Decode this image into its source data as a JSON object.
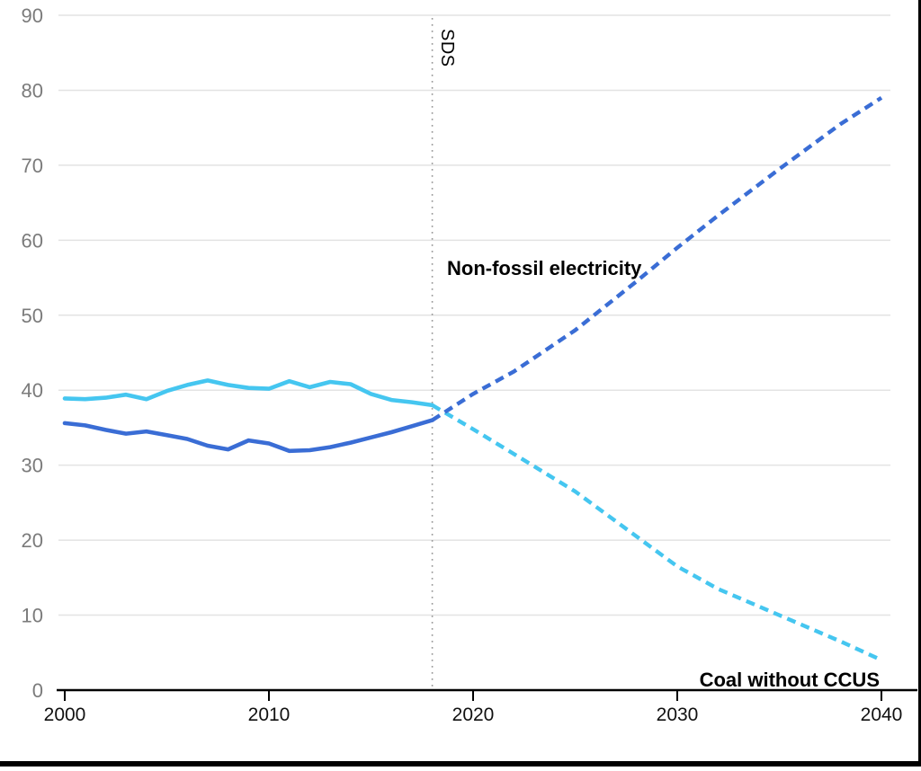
{
  "chart_data": {
    "type": "line",
    "title": "",
    "xlabel": "",
    "ylabel": "",
    "xlim": [
      2000,
      2041
    ],
    "ylim": [
      0,
      90
    ],
    "x_ticks": [
      2000,
      2010,
      2020,
      2030,
      2040
    ],
    "y_ticks": [
      0,
      10,
      20,
      30,
      40,
      50,
      60,
      70,
      80,
      90
    ],
    "grid": "horizontal",
    "divider_year": 2018,
    "labels": {
      "scenario": "SDS",
      "non_fossil_annotation": "Non-fossil electricity",
      "coal_annotation": "Coal without CCUS"
    },
    "appearance": {
      "grid_color": "#e3e3e3",
      "divider_color": "#999999",
      "axis_color": "#000000",
      "y_tick_text_color": "#7b7b7b",
      "x_tick_text_color": "#111111",
      "background": "#ffffff",
      "frame_edge_color": "#000000"
    },
    "series": [
      {
        "name": "Coal without CCUS",
        "color": "#45c6f0",
        "historical": {
          "years": [
            2000,
            2001,
            2002,
            2003,
            2004,
            2005,
            2006,
            2007,
            2008,
            2009,
            2010,
            2011,
            2012,
            2013,
            2014,
            2015,
            2016,
            2017,
            2018
          ],
          "values": [
            38.9,
            38.8,
            39.0,
            39.4,
            38.8,
            39.9,
            40.7,
            41.3,
            40.7,
            40.3,
            40.2,
            41.2,
            40.4,
            41.1,
            40.8,
            39.5,
            38.7,
            38.4,
            38.0
          ]
        },
        "projection": {
          "years": [
            2018,
            2020,
            2022,
            2025,
            2028,
            2030,
            2032,
            2035,
            2038,
            2040
          ],
          "values": [
            38.0,
            34.8,
            31.5,
            26.5,
            20.5,
            16.5,
            13.5,
            10.0,
            6.5,
            4.0
          ]
        }
      },
      {
        "name": "Non-fossil electricity",
        "color": "#3a6dd5",
        "historical": {
          "years": [
            2000,
            2001,
            2002,
            2003,
            2004,
            2005,
            2006,
            2007,
            2008,
            2009,
            2010,
            2011,
            2012,
            2013,
            2014,
            2015,
            2016,
            2017,
            2018
          ],
          "values": [
            35.6,
            35.3,
            34.7,
            34.2,
            34.5,
            34.0,
            33.5,
            32.6,
            32.1,
            33.3,
            32.9,
            31.9,
            32.0,
            32.4,
            33.0,
            33.7,
            34.4,
            35.2,
            36.0
          ]
        },
        "projection": {
          "years": [
            2018,
            2020,
            2022,
            2025,
            2028,
            2030,
            2032,
            2035,
            2038,
            2040
          ],
          "values": [
            36.0,
            39.5,
            42.5,
            48.0,
            54.5,
            59.0,
            63.3,
            69.5,
            75.5,
            79.0
          ]
        }
      }
    ]
  }
}
